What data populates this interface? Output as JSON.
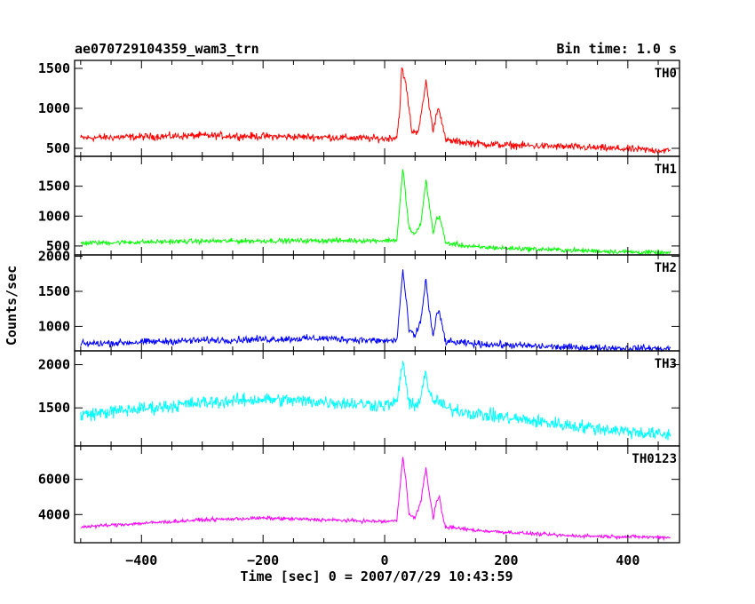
{
  "chart_data": {
    "type": "line",
    "title": "ae070729104359_wam3_trn",
    "bin_time_label": "Bin time: 1.0 s",
    "xlabel": "Time [sec] 0 = 2007/07/29 10:43:59",
    "ylabel": "Counts/sec",
    "xlim": [
      -510,
      485
    ],
    "x_ticks": [
      -400,
      -200,
      0,
      200,
      400
    ],
    "x_tick_labels": [
      "−400",
      "−200",
      "0",
      "200",
      "400"
    ],
    "grid": false,
    "panels": [
      {
        "name": "TH0",
        "color": "#ff0000",
        "ylim": [
          400,
          1600
        ],
        "y_ticks": [
          500,
          1000,
          1500
        ],
        "noise": 32,
        "profile": [
          [
            -500,
            630
          ],
          [
            -300,
            660
          ],
          [
            -100,
            640
          ],
          [
            0,
            620
          ],
          [
            20,
            640
          ],
          [
            25,
            1000
          ],
          [
            28,
            1500
          ],
          [
            35,
            1300
          ],
          [
            40,
            1000
          ],
          [
            45,
            700
          ],
          [
            55,
            720
          ],
          [
            62,
            1000
          ],
          [
            68,
            1350
          ],
          [
            72,
            1100
          ],
          [
            80,
            700
          ],
          [
            85,
            950
          ],
          [
            90,
            1000
          ],
          [
            95,
            800
          ],
          [
            100,
            600
          ],
          [
            150,
            560
          ],
          [
            200,
            540
          ],
          [
            300,
            520
          ],
          [
            470,
            470
          ]
        ]
      },
      {
        "name": "TH1",
        "color": "#00ff00",
        "ylim": [
          350,
          2000
        ],
        "y_ticks": [
          500,
          1000,
          1500
        ],
        "noise": 28,
        "profile": [
          [
            -500,
            550
          ],
          [
            -300,
            580
          ],
          [
            -100,
            590
          ],
          [
            0,
            590
          ],
          [
            20,
            600
          ],
          [
            25,
            1200
          ],
          [
            30,
            1800
          ],
          [
            35,
            1300
          ],
          [
            40,
            800
          ],
          [
            50,
            680
          ],
          [
            60,
            900
          ],
          [
            68,
            1600
          ],
          [
            72,
            1300
          ],
          [
            80,
            700
          ],
          [
            85,
            950
          ],
          [
            90,
            1000
          ],
          [
            95,
            800
          ],
          [
            100,
            550
          ],
          [
            150,
            480
          ],
          [
            300,
            430
          ],
          [
            470,
            380
          ]
        ]
      },
      {
        "name": "TH2",
        "color": "#0000ff",
        "ylim": [
          650,
          2020
        ],
        "y_ticks": [
          1000,
          1500,
          2000
        ],
        "noise": 35,
        "profile": [
          [
            -500,
            750
          ],
          [
            -300,
            800
          ],
          [
            -100,
            830
          ],
          [
            0,
            790
          ],
          [
            20,
            800
          ],
          [
            25,
            1300
          ],
          [
            30,
            1800
          ],
          [
            35,
            1400
          ],
          [
            40,
            950
          ],
          [
            50,
            850
          ],
          [
            60,
            1100
          ],
          [
            68,
            1700
          ],
          [
            72,
            1300
          ],
          [
            80,
            850
          ],
          [
            85,
            1150
          ],
          [
            90,
            1200
          ],
          [
            95,
            1000
          ],
          [
            100,
            780
          ],
          [
            150,
            750
          ],
          [
            300,
            700
          ],
          [
            470,
            680
          ]
        ]
      },
      {
        "name": "TH3",
        "color": "#00ffff",
        "ylim": [
          1060,
          2160
        ],
        "y_ticks": [
          1500,
          2000
        ],
        "noise": 55,
        "profile": [
          [
            -500,
            1420
          ],
          [
            -300,
            1560
          ],
          [
            -200,
            1600
          ],
          [
            -100,
            1570
          ],
          [
            0,
            1530
          ],
          [
            20,
            1560
          ],
          [
            25,
            1800
          ],
          [
            30,
            2050
          ],
          [
            35,
            1800
          ],
          [
            40,
            1550
          ],
          [
            50,
            1500
          ],
          [
            60,
            1650
          ],
          [
            68,
            1950
          ],
          [
            72,
            1700
          ],
          [
            80,
            1550
          ],
          [
            85,
            1600
          ],
          [
            100,
            1500
          ],
          [
            150,
            1430
          ],
          [
            300,
            1300
          ],
          [
            470,
            1180
          ]
        ]
      },
      {
        "name": "TH0123",
        "color": "#ff00ff",
        "ylim": [
          2400,
          7900
        ],
        "y_ticks": [
          4000,
          6000
        ],
        "noise": 70,
        "profile": [
          [
            -500,
            3300
          ],
          [
            -300,
            3700
          ],
          [
            -200,
            3800
          ],
          [
            -100,
            3700
          ],
          [
            0,
            3600
          ],
          [
            20,
            3650
          ],
          [
            25,
            5500
          ],
          [
            30,
            7300
          ],
          [
            35,
            6000
          ],
          [
            40,
            4000
          ],
          [
            50,
            3800
          ],
          [
            60,
            4800
          ],
          [
            68,
            6700
          ],
          [
            72,
            5500
          ],
          [
            80,
            3800
          ],
          [
            85,
            4700
          ],
          [
            90,
            5000
          ],
          [
            95,
            4000
          ],
          [
            100,
            3300
          ],
          [
            150,
            3100
          ],
          [
            300,
            2800
          ],
          [
            470,
            2700
          ]
        ]
      }
    ]
  }
}
